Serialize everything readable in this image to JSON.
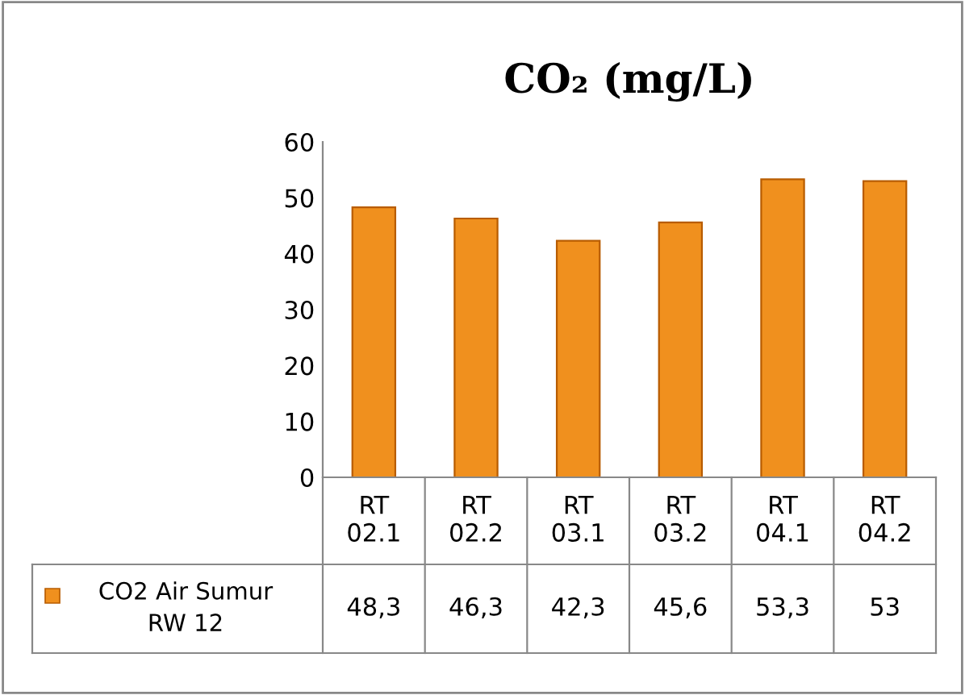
{
  "chart_data": {
    "type": "bar",
    "title": "CO₂ (mg/L)",
    "categories": [
      "RT 02.1",
      "RT 02.2",
      "RT 03.1",
      "RT 03.2",
      "RT 04.1",
      "RT 04.2"
    ],
    "series": [
      {
        "name": "CO2 Air Sumur RW 12",
        "color": "#f0901e",
        "values": [
          48.3,
          46.3,
          42.3,
          45.6,
          53.3,
          53
        ],
        "value_labels": [
          "48,3",
          "46,3",
          "42,3",
          "45,6",
          "53,3",
          "53"
        ]
      }
    ],
    "ylim": [
      0,
      60
    ],
    "yticks": [
      0,
      10,
      20,
      30,
      40,
      50,
      60
    ],
    "grid": false,
    "legend": "bottom"
  }
}
